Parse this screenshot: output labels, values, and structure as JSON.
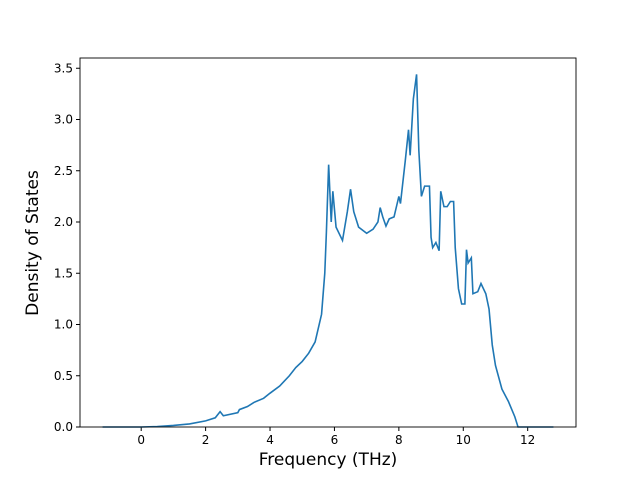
{
  "chart_data": {
    "type": "line",
    "xlabel": "Frequency (THz)",
    "ylabel": "Density of States",
    "x": [
      -1.2,
      0,
      0.5,
      1,
      1.5,
      2,
      2.3,
      2.45,
      2.55,
      3,
      3.05,
      3.3,
      3.5,
      3.8,
      4,
      4.3,
      4.6,
      4.8,
      5,
      5.2,
      5.4,
      5.6,
      5.7,
      5.75,
      5.82,
      5.9,
      5.95,
      6.05,
      6.25,
      6.4,
      6.5,
      6.6,
      6.75,
      7.0,
      7.2,
      7.35,
      7.42,
      7.5,
      7.6,
      7.7,
      7.85,
      8.0,
      8.05,
      8.2,
      8.3,
      8.35,
      8.45,
      8.55,
      8.62,
      8.7,
      8.8,
      8.95,
      9.0,
      9.05,
      9.15,
      9.25,
      9.3,
      9.4,
      9.5,
      9.6,
      9.7,
      9.75,
      9.85,
      9.95,
      10.05,
      10.1,
      10.15,
      10.25,
      10.3,
      10.45,
      10.55,
      10.7,
      10.8,
      10.9,
      11.0,
      11.2,
      11.4,
      11.6,
      11.7,
      12.8
    ],
    "series": [
      {
        "name": "DOS",
        "color": "#1f77b4",
        "values": [
          0,
          0,
          0.005,
          0.015,
          0.03,
          0.06,
          0.09,
          0.15,
          0.11,
          0.14,
          0.17,
          0.2,
          0.24,
          0.28,
          0.33,
          0.4,
          0.5,
          0.58,
          0.64,
          0.72,
          0.83,
          1.1,
          1.5,
          1.9,
          2.56,
          2.0,
          2.3,
          1.95,
          1.82,
          2.1,
          2.32,
          2.1,
          1.95,
          1.89,
          1.93,
          2.0,
          2.14,
          2.05,
          1.96,
          2.03,
          2.05,
          2.25,
          2.18,
          2.6,
          2.9,
          2.65,
          3.2,
          3.44,
          2.7,
          2.25,
          2.35,
          2.35,
          1.85,
          1.75,
          1.8,
          1.72,
          2.3,
          2.15,
          2.15,
          2.2,
          2.2,
          1.75,
          1.35,
          1.2,
          1.2,
          1.73,
          1.6,
          1.65,
          1.3,
          1.32,
          1.4,
          1.3,
          1.15,
          0.8,
          0.6,
          0.37,
          0.25,
          0.1,
          0,
          0
        ]
      }
    ],
    "xlim": [
      -1.9,
      13.5
    ],
    "ylim": [
      0,
      3.6
    ],
    "xticks": [
      0,
      2,
      4,
      6,
      8,
      10,
      12
    ],
    "yticks": [
      {
        "value": 0,
        "label": "0.0"
      },
      {
        "value": 0.5,
        "label": "0.5"
      },
      {
        "value": 1,
        "label": "1.0"
      },
      {
        "value": 1.5,
        "label": "1.5"
      },
      {
        "value": 2,
        "label": "2.0"
      },
      {
        "value": 2.5,
        "label": "2.5"
      },
      {
        "value": 3,
        "label": "3.0"
      },
      {
        "value": 3.5,
        "label": "3.5"
      }
    ]
  }
}
